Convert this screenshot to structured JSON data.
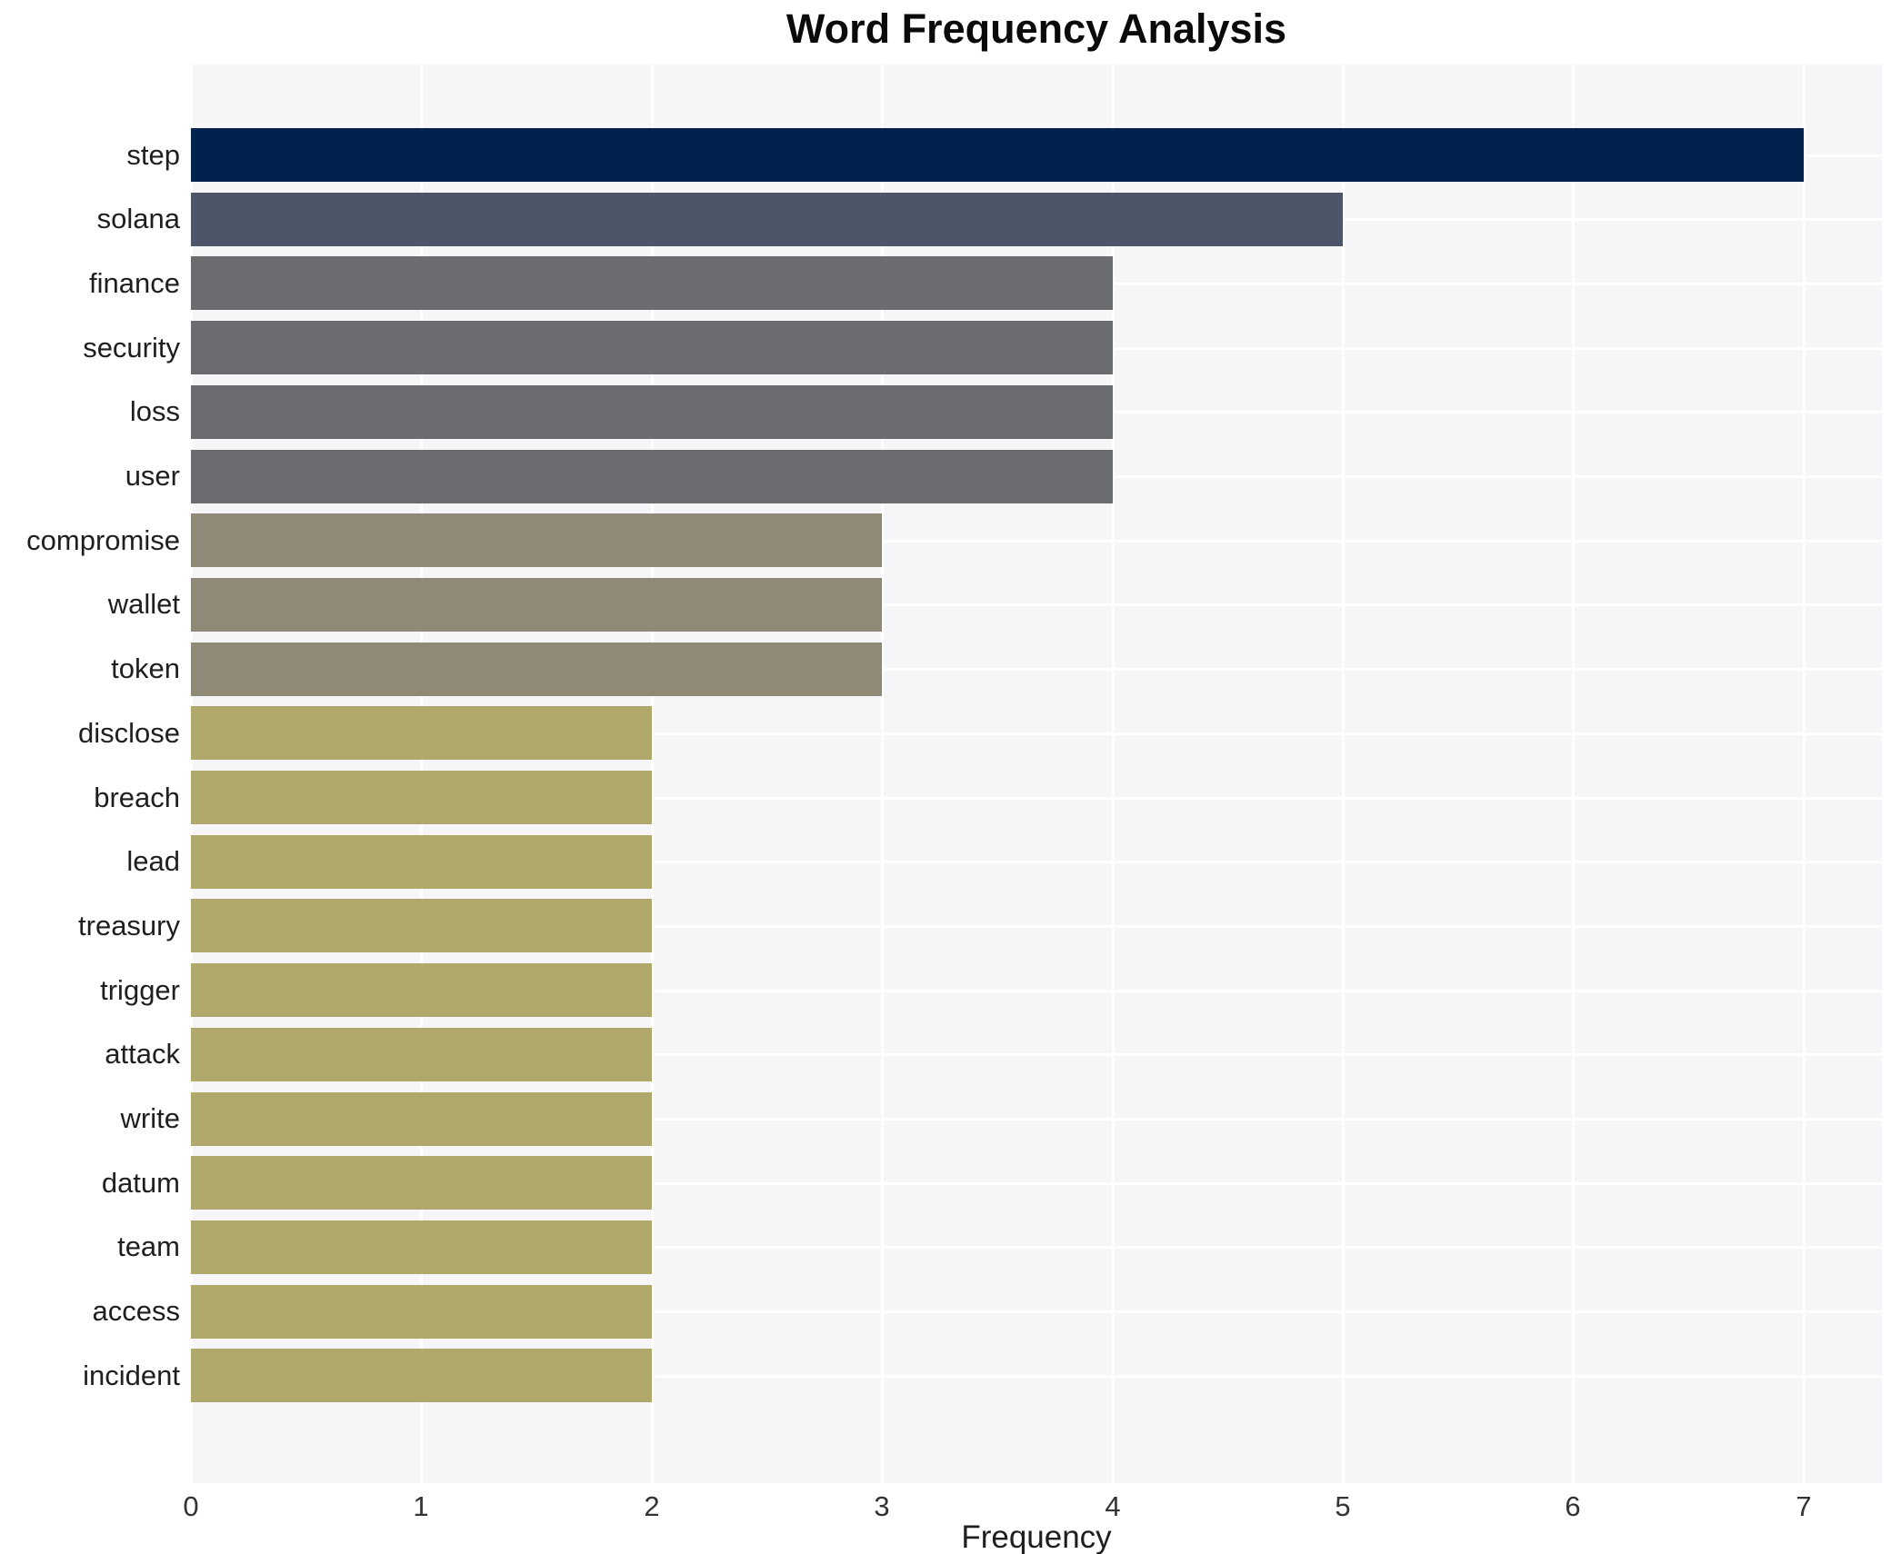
{
  "chart_data": {
    "type": "bar",
    "orientation": "horizontal",
    "title": "Word Frequency Analysis",
    "xlabel": "Frequency",
    "ylabel": "",
    "xlim": [
      0,
      7.34
    ],
    "xticks": [
      0,
      1,
      2,
      3,
      4,
      5,
      6,
      7
    ],
    "grid": true,
    "legend": "none",
    "panel_background": "#f6f6f8",
    "gridline_color": "#ffffff",
    "categories": [
      "step",
      "solana",
      "finance",
      "security",
      "loss",
      "user",
      "compromise",
      "wallet",
      "token",
      "disclose",
      "breach",
      "lead",
      "treasury",
      "trigger",
      "attack",
      "write",
      "datum",
      "team",
      "access",
      "incident"
    ],
    "values": [
      7,
      5,
      4,
      4,
      4,
      4,
      3,
      3,
      3,
      2,
      2,
      2,
      2,
      2,
      2,
      2,
      2,
      2,
      2,
      2
    ],
    "colors": [
      "#02224e",
      "#4d5569",
      "#6b6c70",
      "#6b6c70",
      "#6b6c70",
      "#6b6c70",
      "#8f8a78",
      "#8f8a78",
      "#8f8a78",
      "#b1a86c",
      "#b1a86c",
      "#b1a86c",
      "#b1a86c",
      "#b1a86c",
      "#b1a86c",
      "#b1a86c",
      "#b1a86c",
      "#b1a86c",
      "#b1a86c",
      "#b1a86c"
    ]
  }
}
